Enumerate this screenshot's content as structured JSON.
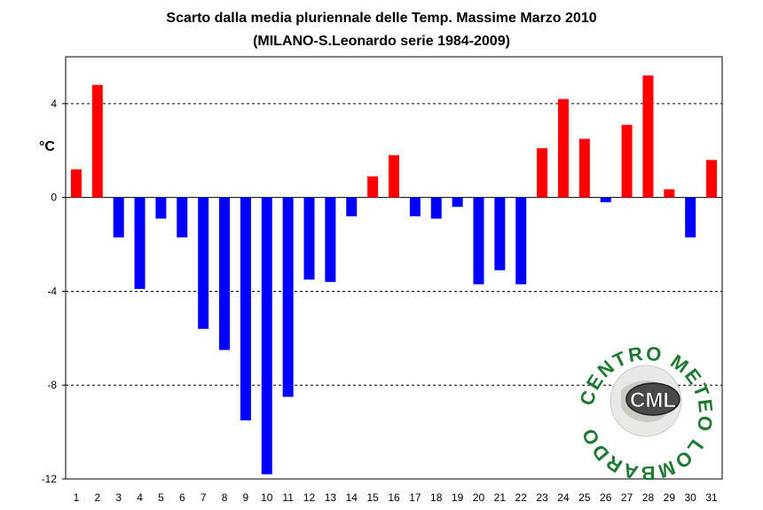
{
  "chart_data": {
    "type": "bar",
    "title": "Scarto dalla media pluriennale delle Temp. Massime Marzo 2010",
    "subtitle": "(MILANO-S.Leonardo serie 1984-2009)",
    "ylabel": "°C",
    "xlabel": "",
    "ylim": [
      -12,
      6
    ],
    "yticks": [
      4,
      0,
      -4,
      -8,
      -12
    ],
    "ytick_labels": [
      "4",
      "0",
      "-4",
      "-8",
      "-12"
    ],
    "grid": "horizontal dashed at y ticks",
    "categories": [
      "1",
      "2",
      "3",
      "4",
      "5",
      "6",
      "7",
      "8",
      "9",
      "10",
      "11",
      "12",
      "13",
      "14",
      "15",
      "16",
      "17",
      "18",
      "19",
      "20",
      "21",
      "22",
      "23",
      "24",
      "25",
      "26",
      "27",
      "28",
      "29",
      "30",
      "31"
    ],
    "values": [
      1.2,
      4.8,
      -1.7,
      -3.9,
      -0.9,
      -1.7,
      -5.6,
      -6.5,
      -9.5,
      -11.8,
      -8.5,
      -3.5,
      -3.6,
      -0.8,
      0.9,
      1.8,
      -0.8,
      -0.9,
      -0.4,
      -3.7,
      -3.1,
      -3.7,
      2.1,
      4.2,
      2.5,
      -0.2,
      3.1,
      5.2,
      0.35,
      -1.7,
      1.6
    ],
    "positive_color": "#ff0000",
    "negative_color": "#0000ff"
  },
  "logo": {
    "center_text": "CML",
    "ring_text": "CENTRO METEO LOMBARDO",
    "color": "#1e7a32"
  }
}
